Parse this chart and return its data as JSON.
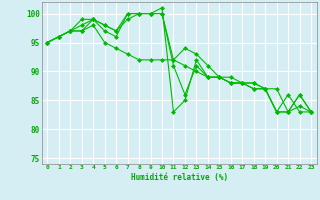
{
  "xlabel": "Humidité relative (%)",
  "background_color": "#d4eef4",
  "grid_color": "#ffffff",
  "line_color": "#00bb00",
  "marker": "D",
  "markersize": 2.0,
  "linewidth": 0.8,
  "xlim": [
    -0.5,
    23.5
  ],
  "ylim": [
    74,
    102
  ],
  "yticks": [
    75,
    80,
    85,
    90,
    95,
    100
  ],
  "xticks": [
    0,
    1,
    2,
    3,
    4,
    5,
    6,
    7,
    8,
    9,
    10,
    11,
    12,
    13,
    14,
    15,
    16,
    17,
    18,
    19,
    20,
    21,
    22,
    23
  ],
  "series": [
    [
      95,
      96,
      97,
      97,
      98,
      95,
      94,
      93,
      92,
      92,
      92,
      92,
      91,
      90,
      89,
      89,
      88,
      88,
      87,
      87,
      83,
      86,
      83,
      83
    ],
    [
      95,
      96,
      97,
      99,
      99,
      97,
      96,
      100,
      100,
      100,
      100,
      92,
      94,
      93,
      91,
      89,
      89,
      88,
      88,
      87,
      87,
      83,
      84,
      83
    ],
    [
      95,
      96,
      97,
      98,
      99,
      98,
      97,
      100,
      100,
      100,
      100,
      91,
      86,
      91,
      89,
      89,
      88,
      88,
      88,
      87,
      83,
      83,
      86,
      83
    ],
    [
      95,
      96,
      97,
      97,
      99,
      98,
      97,
      99,
      100,
      100,
      101,
      83,
      85,
      92,
      89,
      89,
      88,
      88,
      87,
      87,
      83,
      83,
      86,
      83
    ]
  ]
}
